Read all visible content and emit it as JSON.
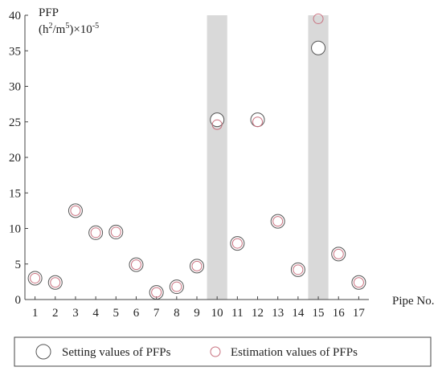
{
  "chart_data": {
    "type": "scatter",
    "title": "",
    "ylabel_line1": "PFP",
    "ylabel_line2_base": "(h",
    "ylabel_line2_sup1": "2",
    "ylabel_line2_mid": "/m",
    "ylabel_line2_sup2": "5",
    "ylabel_line2_rest": ")×10",
    "ylabel_line2_sup3": "-5",
    "xlabel": "Pipe No.",
    "ylim": [
      0,
      40
    ],
    "yticks": [
      0,
      5,
      10,
      15,
      20,
      25,
      30,
      35,
      40
    ],
    "xticks": [
      1,
      2,
      3,
      4,
      5,
      6,
      7,
      8,
      9,
      10,
      11,
      12,
      13,
      14,
      15,
      16,
      17
    ],
    "xlim": [
      0.5,
      17.5
    ],
    "highlighted_pipes": [
      10,
      15
    ],
    "series": [
      {
        "name": "Setting values of PFPs",
        "marker": "large-open-circle",
        "color": "#555555",
        "x": [
          1,
          2,
          3,
          4,
          5,
          6,
          7,
          8,
          9,
          10,
          11,
          12,
          13,
          14,
          15,
          16,
          17
        ],
        "values": [
          3.0,
          2.4,
          12.5,
          9.4,
          9.5,
          4.9,
          1.0,
          1.8,
          4.7,
          25.3,
          7.9,
          25.3,
          11.0,
          4.2,
          35.4,
          6.4,
          2.4
        ]
      },
      {
        "name": "Estimation values of PFPs",
        "marker": "small-open-circle",
        "color": "#c8707e",
        "x": [
          1,
          2,
          3,
          4,
          5,
          6,
          7,
          8,
          9,
          10,
          11,
          12,
          13,
          14,
          15,
          16,
          17
        ],
        "values": [
          3.0,
          2.4,
          12.5,
          9.4,
          9.5,
          4.9,
          1.0,
          1.8,
          4.7,
          24.6,
          7.9,
          25.0,
          11.0,
          4.2,
          39.5,
          6.4,
          2.4
        ]
      }
    ],
    "legend_position": "bottom",
    "highlight_color": "#d9d9d9",
    "axis_color": "#444444"
  }
}
